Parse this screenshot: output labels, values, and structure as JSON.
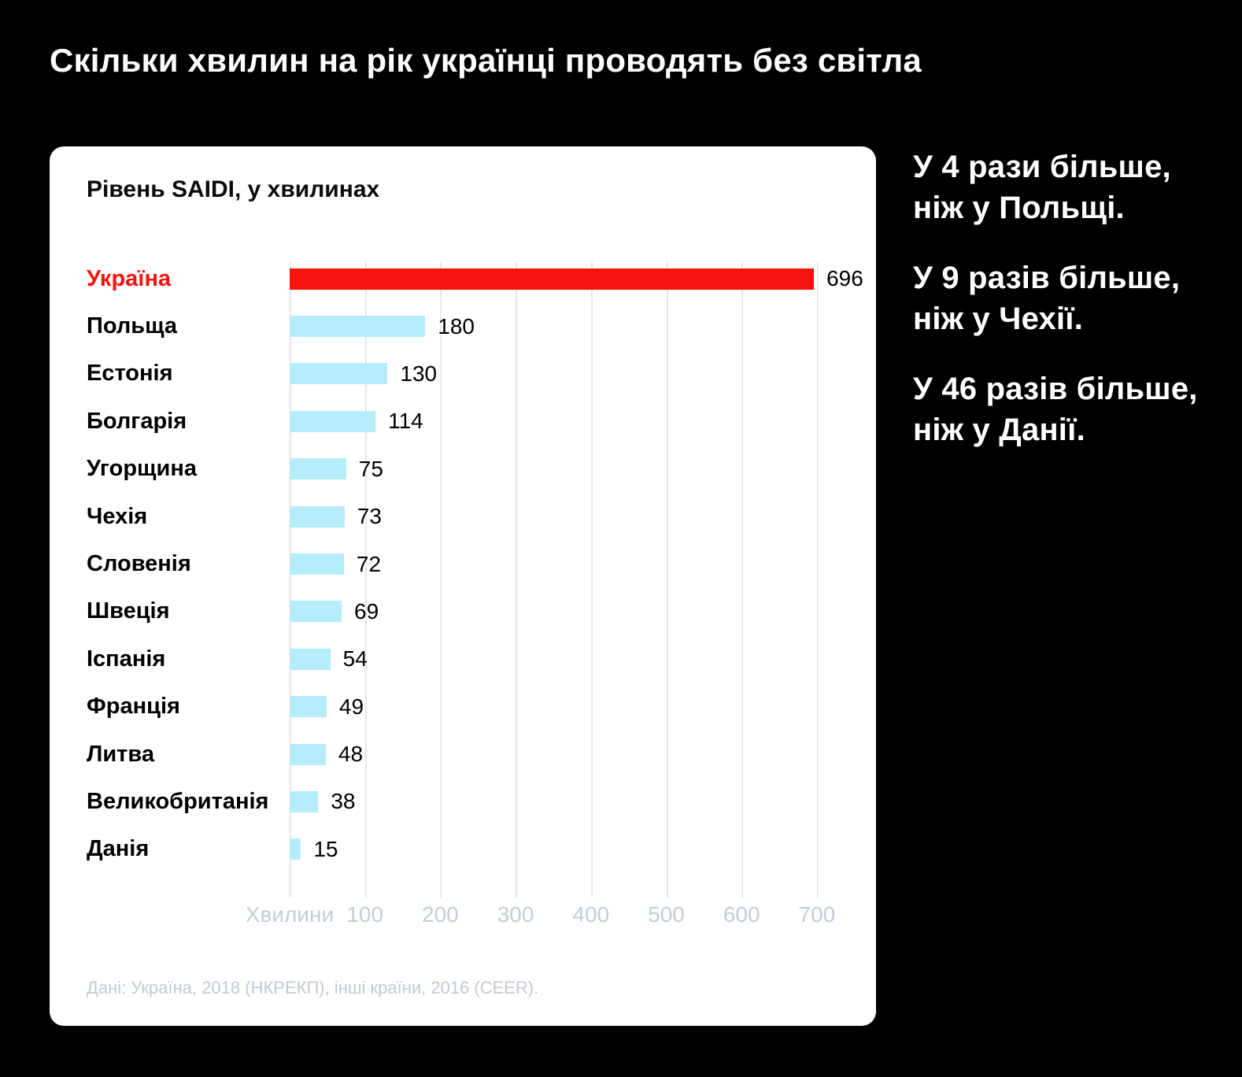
{
  "page_title": "Скільки хвилин на рік українці проводять без світла",
  "card": {
    "title": "Рівень SAIDI, у хвилинах",
    "source": "Дані: Україна, 2018 (НКРЕКП), інші країни, 2016 (CEER)."
  },
  "chart_data": {
    "type": "bar",
    "orientation": "horizontal",
    "title": "Рівень SAIDI, у хвилинах",
    "xlabel": "Хвилини",
    "categories": [
      "Україна",
      "Польща",
      "Естонія",
      "Болгарія",
      "Угорщина",
      "Чехія",
      "Словенія",
      "Швеція",
      "Іспанія",
      "Франція",
      "Литва",
      "Великобританія",
      "Данія"
    ],
    "values": [
      696,
      180,
      130,
      114,
      75,
      73,
      72,
      69,
      54,
      49,
      48,
      38,
      15
    ],
    "xticks": [
      100,
      200,
      300,
      400,
      500,
      600,
      700
    ],
    "xlim": [
      0,
      730
    ],
    "grid": true,
    "legend": "none",
    "highlight_category": "Україна",
    "bar_color": "#b6edfc",
    "highlight_color": "#f7130e",
    "highlight_label_color": "#f7130e"
  },
  "annotations": [
    {
      "line1": "У 4 рази більше,",
      "line2": "ніж у Польщі."
    },
    {
      "line1": "У 9 разів більше,",
      "line2": "ніж у Чехії."
    },
    {
      "line1": "У 46 разів більше,",
      "line2": "ніж у Данії."
    }
  ],
  "colors": {
    "background": "#000000",
    "card_background": "#ffffff",
    "title_text": "#ffffff",
    "label_text": "#000000",
    "gridline": "#e7e7e7",
    "axis_text": "#c5ccd6",
    "source_text": "#c3c9d3"
  }
}
